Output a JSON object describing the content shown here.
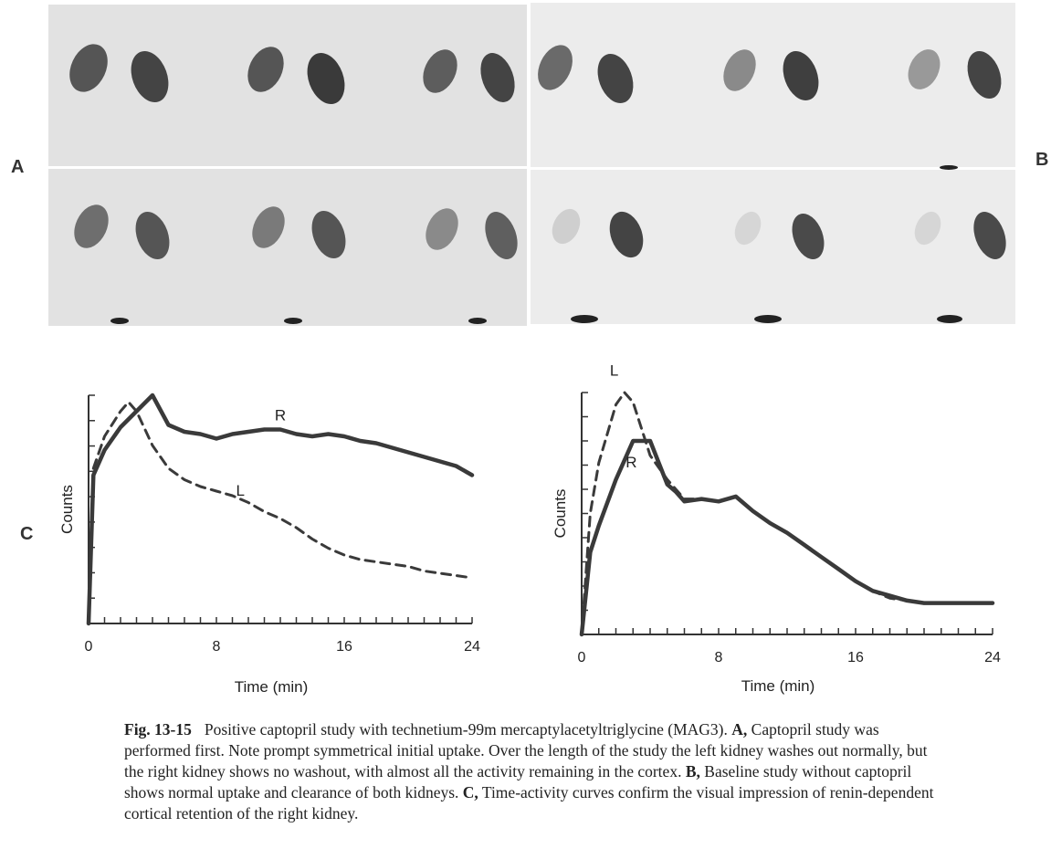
{
  "panels": {
    "a_label": "A",
    "b_label": "B",
    "c_label": "C"
  },
  "scans": {
    "a": {
      "top_row": [
        "frame-1",
        "frame-2",
        "frame-3"
      ],
      "bottom_row": [
        "frame-4",
        "frame-5",
        "frame-6"
      ]
    },
    "b": {
      "top_row": [
        "frame-1",
        "frame-2",
        "frame-3"
      ],
      "bottom_row": [
        "frame-4",
        "frame-5",
        "frame-6"
      ]
    }
  },
  "chart_data": [
    {
      "type": "line",
      "xlabel": "Time (min)",
      "ylabel": "Counts",
      "xticks": [
        "0",
        "8",
        "16",
        "24"
      ],
      "xlim": [
        0,
        24
      ],
      "ylim": [
        0,
        10
      ],
      "series": [
        {
          "name": "R",
          "style": "solid",
          "x": [
            0,
            0.3,
            1,
            2,
            3,
            4,
            5,
            6,
            7,
            8,
            9,
            10,
            11,
            12,
            13,
            14,
            15,
            16,
            17,
            18,
            19,
            20,
            21,
            22,
            23,
            24
          ],
          "y": [
            0,
            6.5,
            7.6,
            8.6,
            9.3,
            10.0,
            8.7,
            8.4,
            8.3,
            8.1,
            8.3,
            8.4,
            8.5,
            8.5,
            8.3,
            8.2,
            8.3,
            8.2,
            8.0,
            7.9,
            7.7,
            7.5,
            7.3,
            7.1,
            6.9,
            6.5
          ]
        },
        {
          "name": "L",
          "style": "dashed",
          "x": [
            0,
            0.3,
            1,
            2,
            2.5,
            3,
            4,
            5,
            6,
            7,
            8,
            9,
            10,
            11,
            12,
            13,
            14,
            15,
            16,
            17,
            18,
            19,
            20,
            21,
            22,
            23,
            24
          ],
          "y": [
            0,
            6.8,
            8.2,
            9.3,
            9.7,
            9.3,
            7.8,
            6.8,
            6.3,
            6.0,
            5.8,
            5.6,
            5.3,
            4.9,
            4.6,
            4.2,
            3.7,
            3.3,
            3.0,
            2.8,
            2.7,
            2.6,
            2.5,
            2.3,
            2.2,
            2.1,
            2.0
          ]
        }
      ],
      "annotations": [
        "R",
        "L"
      ]
    },
    {
      "type": "line",
      "xlabel": "Time (min)",
      "ylabel": "Counts",
      "xticks": [
        "0",
        "8",
        "16",
        "24"
      ],
      "xlim": [
        0,
        24
      ],
      "ylim": [
        0,
        10
      ],
      "series": [
        {
          "name": "R",
          "style": "solid",
          "x": [
            0,
            0.5,
            1,
            2,
            3,
            4,
            5,
            5.5,
            6,
            7,
            8,
            9,
            10,
            11,
            12,
            13,
            14,
            15,
            16,
            17,
            18,
            19,
            20,
            21,
            22,
            23,
            24
          ],
          "y": [
            0,
            3.4,
            4.5,
            6.4,
            8.0,
            8.0,
            6.2,
            5.9,
            5.5,
            5.6,
            5.5,
            5.7,
            5.1,
            4.6,
            4.2,
            3.7,
            3.2,
            2.7,
            2.2,
            1.8,
            1.6,
            1.4,
            1.3,
            1.3,
            1.3,
            1.3,
            1.3
          ]
        },
        {
          "name": "L",
          "style": "dashed",
          "x": [
            0,
            0.5,
            1,
            2,
            2.5,
            3,
            4,
            5,
            5.5,
            6,
            7,
            8,
            9,
            10,
            11,
            12,
            13,
            14,
            15,
            16,
            17,
            18,
            19
          ],
          "y": [
            0,
            5.0,
            7.1,
            9.5,
            10.0,
            9.6,
            7.4,
            6.4,
            6.0,
            5.6,
            5.6,
            5.5,
            5.7,
            5.1,
            4.6,
            4.2,
            3.7,
            3.2,
            2.7,
            2.2,
            1.8,
            1.5,
            1.4
          ]
        }
      ],
      "annotations": [
        "L",
        "R"
      ]
    }
  ],
  "caption": {
    "fig_number": "Fig. 13-15",
    "title": "Positive captopril study with technetium-99m mercaptylacetyltriglycine (MAG3).",
    "a_label": "A,",
    "a_text": "Captopril study was performed first. Note prompt symmetrical initial uptake. Over the length of the study the left kidney washes out normally, but the right kidney shows no washout, with almost all the activity remaining in the cortex.",
    "b_label": "B,",
    "b_text": "Baseline study without captopril shows normal uptake and clearance of both kidneys.",
    "c_label": "C,",
    "c_text": "Time-activity curves confirm the visual impression of renin-dependent cortical retention of the right kidney."
  }
}
